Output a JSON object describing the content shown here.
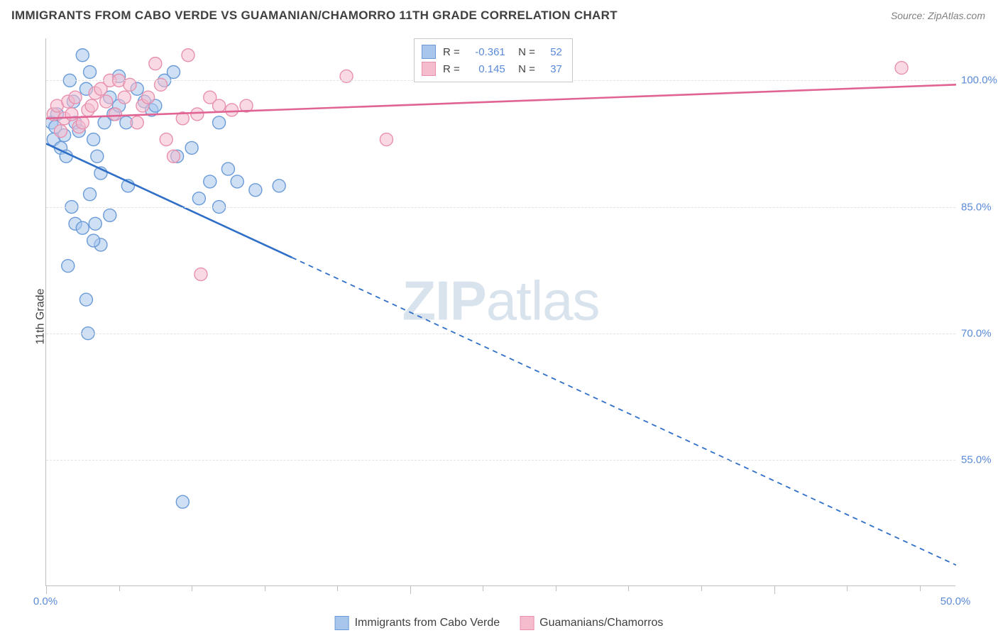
{
  "title": "IMMIGRANTS FROM CABO VERDE VS GUAMANIAN/CHAMORRO 11TH GRADE CORRELATION CHART",
  "source": "Source: ZipAtlas.com",
  "ylabel": "11th Grade",
  "watermark_bold": "ZIP",
  "watermark_light": "atlas",
  "chart": {
    "type": "scatter",
    "xlim": [
      0,
      50
    ],
    "ylim": [
      40,
      105
    ],
    "x_major_ticks": [
      0,
      20,
      40
    ],
    "x_minor_ticks": [
      4,
      8,
      12,
      16,
      24,
      28,
      32,
      36,
      44,
      48
    ],
    "x_tick_labels": [
      {
        "x": 0,
        "label": "0.0%"
      },
      {
        "x": 50,
        "label": "50.0%"
      }
    ],
    "y_gridlines": [
      55,
      70,
      85,
      100
    ],
    "y_tick_labels": [
      {
        "y": 55,
        "label": "55.0%"
      },
      {
        "y": 70,
        "label": "70.0%"
      },
      {
        "y": 85,
        "label": "85.0%"
      },
      {
        "y": 100,
        "label": "100.0%"
      }
    ],
    "series": [
      {
        "name": "Immigrants from Cabo Verde",
        "color_fill": "#a8c6ec",
        "color_stroke": "#6a9bd8",
        "line_color": "#2f6fc7",
        "marker_radius": 9,
        "marker_opacity": 0.55,
        "R": "-0.361",
        "N": "52",
        "regression": {
          "x1": 0,
          "y1": 92.5,
          "x2": 50,
          "y2": 42.5,
          "solid_until_x": 13.5
        },
        "points": [
          [
            0.3,
            95
          ],
          [
            0.4,
            93
          ],
          [
            0.5,
            94.5
          ],
          [
            0.6,
            96
          ],
          [
            0.8,
            92
          ],
          [
            1.0,
            93.5
          ],
          [
            1.1,
            91
          ],
          [
            1.3,
            100
          ],
          [
            1.5,
            97.5
          ],
          [
            1.6,
            95
          ],
          [
            1.8,
            94
          ],
          [
            2.0,
            103
          ],
          [
            2.2,
            99
          ],
          [
            2.4,
            101
          ],
          [
            2.6,
            93
          ],
          [
            2.8,
            91
          ],
          [
            3.0,
            89
          ],
          [
            3.2,
            95
          ],
          [
            3.5,
            98
          ],
          [
            3.7,
            96
          ],
          [
            4.0,
            100.5
          ],
          [
            1.4,
            85
          ],
          [
            1.6,
            83
          ],
          [
            2.0,
            82.5
          ],
          [
            2.4,
            86.5
          ],
          [
            2.7,
            83
          ],
          [
            3.0,
            80.5
          ],
          [
            1.2,
            78
          ],
          [
            2.6,
            81
          ],
          [
            3.5,
            84
          ],
          [
            4.5,
            87.5
          ],
          [
            2.2,
            74
          ],
          [
            2.3,
            70
          ],
          [
            4.0,
            97
          ],
          [
            4.4,
            95
          ],
          [
            5.0,
            99
          ],
          [
            5.4,
            97.5
          ],
          [
            5.8,
            96.5
          ],
          [
            6.0,
            97
          ],
          [
            6.5,
            100
          ],
          [
            7.0,
            101
          ],
          [
            7.2,
            91
          ],
          [
            8.0,
            92
          ],
          [
            8.4,
            86
          ],
          [
            9.0,
            88
          ],
          [
            9.5,
            85
          ],
          [
            9.5,
            95
          ],
          [
            10.0,
            89.5
          ],
          [
            10.5,
            88
          ],
          [
            11.5,
            87
          ],
          [
            12.8,
            87.5
          ],
          [
            7.5,
            50
          ]
        ]
      },
      {
        "name": "Guamanians/Chamorros",
        "color_fill": "#f4bccd",
        "color_stroke": "#e890ae",
        "line_color": "#e06493",
        "marker_radius": 9,
        "marker_opacity": 0.55,
        "R": "0.145",
        "N": "37",
        "regression": {
          "x1": 0,
          "y1": 95.5,
          "x2": 50,
          "y2": 99.5,
          "solid_until_x": 50
        },
        "points": [
          [
            0.4,
            96
          ],
          [
            0.6,
            97
          ],
          [
            0.8,
            94
          ],
          [
            1.0,
            95.5
          ],
          [
            1.2,
            97.5
          ],
          [
            1.4,
            96
          ],
          [
            1.6,
            98
          ],
          [
            1.8,
            94.5
          ],
          [
            2.0,
            95
          ],
          [
            2.3,
            96.5
          ],
          [
            2.5,
            97
          ],
          [
            2.7,
            98.5
          ],
          [
            3.0,
            99
          ],
          [
            3.3,
            97.5
          ],
          [
            3.5,
            100
          ],
          [
            3.8,
            96
          ],
          [
            4.0,
            100
          ],
          [
            4.3,
            98
          ],
          [
            4.6,
            99.5
          ],
          [
            5.0,
            95
          ],
          [
            5.3,
            97
          ],
          [
            5.6,
            98
          ],
          [
            6.0,
            102
          ],
          [
            6.3,
            99.5
          ],
          [
            6.6,
            93
          ],
          [
            7.0,
            91
          ],
          [
            7.5,
            95.5
          ],
          [
            7.8,
            103
          ],
          [
            8.3,
            96
          ],
          [
            9.0,
            98
          ],
          [
            9.5,
            97
          ],
          [
            10.2,
            96.5
          ],
          [
            11.0,
            97
          ],
          [
            16.5,
            100.5
          ],
          [
            18.7,
            93
          ],
          [
            8.5,
            77
          ],
          [
            47.0,
            101.5
          ]
        ]
      }
    ],
    "legend_bottom": [
      {
        "label": "Immigrants from Cabo Verde",
        "fill": "#a8c6ec",
        "stroke": "#6a9bd8"
      },
      {
        "label": "Guamanians/Chamorros",
        "fill": "#f4bccd",
        "stroke": "#e890ae"
      }
    ]
  }
}
